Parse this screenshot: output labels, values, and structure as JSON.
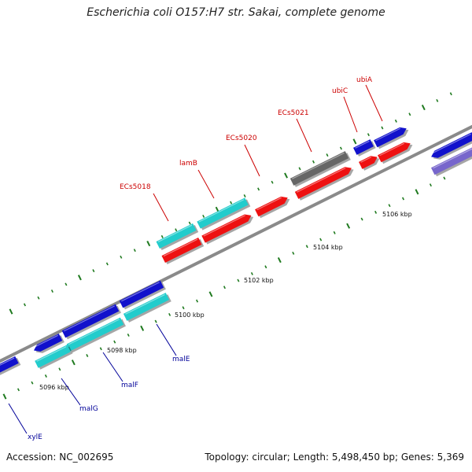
{
  "title": "Escherichia coli O157:H7 str. Sakai, complete genome",
  "footer": {
    "accession": "Accession: NC_002695",
    "summary": "Topology: circular; Length: 5,498,450 bp; Genes: 5,369"
  },
  "colors": {
    "backbone": "#8a8a8a",
    "tick": "#1f7a1f",
    "red_gene": "#ee1111",
    "cyan_gene": "#22cccc",
    "blue_gene": "#1111cc",
    "gray_gene": "#666666",
    "purple_gene": "#7766cc",
    "label_red": "#cc0000",
    "label_blue": "#000099"
  },
  "scale_labels": [
    "5096 kbp",
    "5098 kbp",
    "5100 kbp",
    "5102 kbp",
    "5104 kbp",
    "5106 kbp"
  ],
  "genes": [
    {
      "name": "ECs5018",
      "color": "red",
      "side": "top"
    },
    {
      "name": "lamB",
      "color": "red",
      "side": "top"
    },
    {
      "name": "ECs5020",
      "color": "red",
      "side": "top"
    },
    {
      "name": "ECs5021",
      "color": "red",
      "side": "top"
    },
    {
      "name": "ubiC",
      "color": "red",
      "side": "top"
    },
    {
      "name": "ubiA",
      "color": "red",
      "side": "top"
    },
    {
      "name": "malE",
      "color": "blue",
      "side": "bottom"
    },
    {
      "name": "malF",
      "color": "blue",
      "side": "bottom"
    },
    {
      "name": "malG",
      "color": "blue",
      "side": "bottom"
    },
    {
      "name": "xylE",
      "color": "blue",
      "side": "bottom"
    }
  ]
}
